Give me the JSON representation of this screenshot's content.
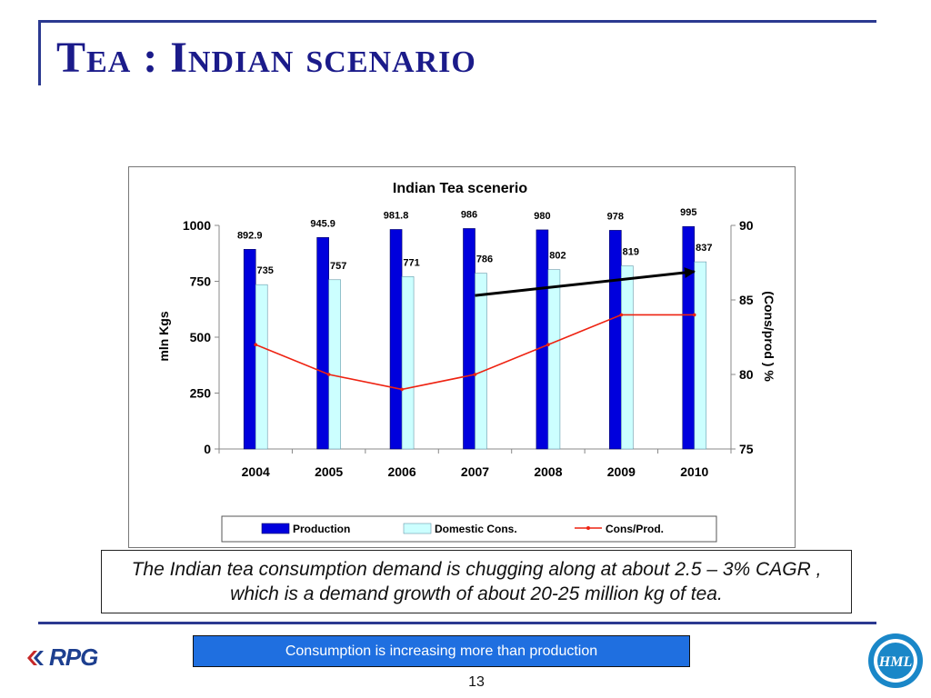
{
  "slide": {
    "title": "Tea : Indian scenario",
    "note": "The Indian tea consumption demand is chugging along at about 2.5 – 3% CAGR , which is a demand growth of about 20-25 million kg of tea.",
    "banner": "Consumption is  increasing more than production",
    "page_number": "13",
    "left_logo_text": "RPG",
    "right_logo_text": "HML"
  },
  "colors": {
    "title": "#1b1b8a",
    "rule": "#2b3990",
    "production": "#0000dd",
    "domestic": "#ccffff",
    "ratio": "#ee2211",
    "trend": "#000000",
    "banner": "#1f6fe0"
  },
  "chart_data": {
    "type": "bar",
    "title": "Indian Tea scenerio",
    "categories": [
      "2004",
      "2005",
      "2006",
      "2007",
      "2008",
      "2009",
      "2010"
    ],
    "series": [
      {
        "name": "Production",
        "type": "bar",
        "axis": "left",
        "values": [
          892.9,
          945.9,
          981.8,
          986,
          980,
          978,
          995
        ],
        "labels": [
          "892.9",
          "945.9",
          "981.8",
          "986",
          "980",
          "978",
          "995"
        ]
      },
      {
        "name": "Domestic Cons.",
        "type": "bar",
        "axis": "left",
        "values": [
          735,
          757,
          771,
          786,
          802,
          819,
          837
        ],
        "labels": [
          "735",
          "757",
          "771",
          "786",
          "802",
          "819",
          "837"
        ]
      },
      {
        "name": "Cons/Prod.",
        "type": "line",
        "axis": "right",
        "values": [
          82,
          80,
          79,
          80,
          82,
          84,
          84
        ]
      }
    ],
    "trend_arrow": {
      "from": [
        "2007",
        85.3
      ],
      "to": [
        "2010",
        86.9
      ]
    },
    "ylabel": "mln Kgs",
    "ylim": [
      0,
      1000
    ],
    "yticks": [
      "0",
      "250",
      "500",
      "750",
      "1000"
    ],
    "y2label": "(Cons/prod ) %",
    "y2lim": [
      75,
      90
    ],
    "y2ticks": [
      "75",
      "80",
      "85",
      "90"
    ],
    "grid": false,
    "legend": "bottom"
  }
}
